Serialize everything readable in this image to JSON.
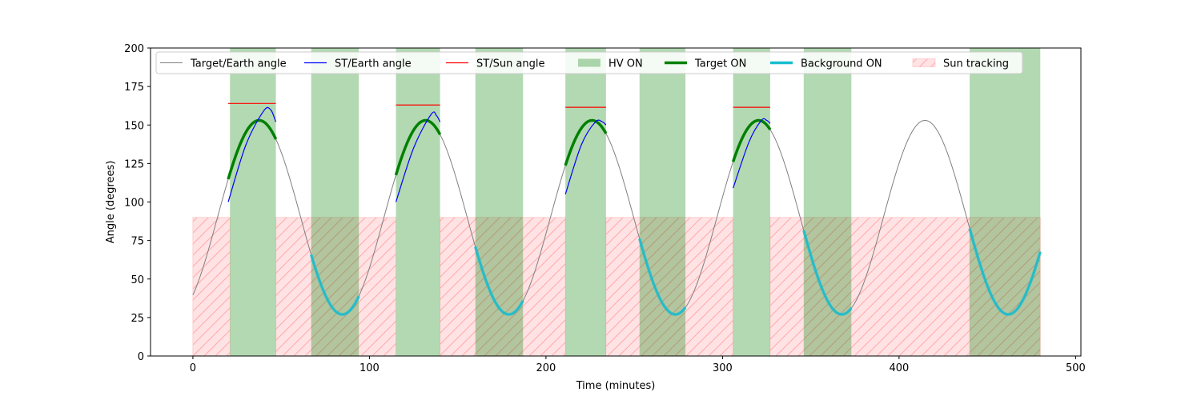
{
  "chart_data": {
    "type": "line",
    "title": "",
    "xlabel": "Time (minutes)",
    "ylabel": "Angle (degrees)",
    "xlim": [
      -24,
      503
    ],
    "ylim": [
      0,
      200
    ],
    "xticks": [
      0,
      100,
      200,
      300,
      400,
      500
    ],
    "yticks": [
      0,
      25,
      50,
      75,
      100,
      125,
      150,
      175,
      200
    ],
    "legend_position": "top",
    "legend": [
      {
        "label": "Target/Earth angle",
        "kind": "line",
        "color": "#808080",
        "width": 1
      },
      {
        "label": "ST/Earth angle",
        "kind": "line",
        "color": "#0000ff",
        "width": 1.2
      },
      {
        "label": "ST/Sun angle",
        "kind": "line",
        "color": "#ff0000",
        "width": 1.2
      },
      {
        "label": "HV ON",
        "kind": "patch",
        "color": "#008000"
      },
      {
        "label": "Target ON",
        "kind": "line",
        "color": "#008000",
        "width": 3.5
      },
      {
        "label": "Background ON",
        "kind": "line",
        "color": "#17becf",
        "width": 3.5
      },
      {
        "label": "Sun tracking",
        "kind": "hatch",
        "color": "#ff9999"
      }
    ],
    "target_earth_angle": {
      "color": "#808080",
      "model": "cosine",
      "center": 90,
      "amplitude": 63,
      "period_minutes": 94.3,
      "peak_time_minutes": 37.5,
      "x_range": [
        0,
        480
      ]
    },
    "hv_on_intervals": [
      [
        21,
        47
      ],
      [
        67,
        94
      ],
      [
        115,
        140
      ],
      [
        160,
        187
      ],
      [
        211,
        234
      ],
      [
        253,
        279
      ],
      [
        306,
        327
      ],
      [
        346,
        373
      ],
      [
        440,
        480
      ]
    ],
    "target_on_intervals": [
      [
        20,
        47
      ],
      [
        115,
        140
      ],
      [
        211,
        234
      ],
      [
        306,
        327
      ]
    ],
    "background_on_intervals": [
      [
        67,
        94
      ],
      [
        160,
        187
      ],
      [
        253,
        279
      ],
      [
        346,
        373
      ],
      [
        440,
        480
      ]
    ],
    "sun_tracking": {
      "y_range": [
        0,
        90
      ],
      "intervals": [
        [
          0,
          21
        ],
        [
          47,
          115
        ],
        [
          140,
          211
        ],
        [
          234,
          306
        ],
        [
          327,
          440
        ],
        [
          440,
          480
        ]
      ]
    },
    "st_earth_angle": [
      {
        "x": [
          20,
          30,
          40,
          44,
          47
        ],
        "y": [
          100,
          137,
          159,
          160,
          152
        ]
      },
      {
        "x": [
          115,
          125,
          135,
          138,
          140
        ],
        "y": [
          100,
          135,
          157,
          156,
          152
        ]
      },
      {
        "x": [
          211,
          220,
          228,
          232,
          234
        ],
        "y": [
          105,
          137,
          152,
          152,
          150
        ]
      },
      {
        "x": [
          306,
          315,
          322,
          325,
          327
        ],
        "y": [
          109,
          139,
          153,
          153,
          151
        ]
      }
    ],
    "st_sun_angle": [
      {
        "x": [
          20,
          47
        ],
        "y": 164
      },
      {
        "x": [
          115,
          140
        ],
        "y": 163
      },
      {
        "x": [
          211,
          234
        ],
        "y": 161.5
      },
      {
        "x": [
          306,
          327
        ],
        "y": 161.5
      }
    ]
  }
}
